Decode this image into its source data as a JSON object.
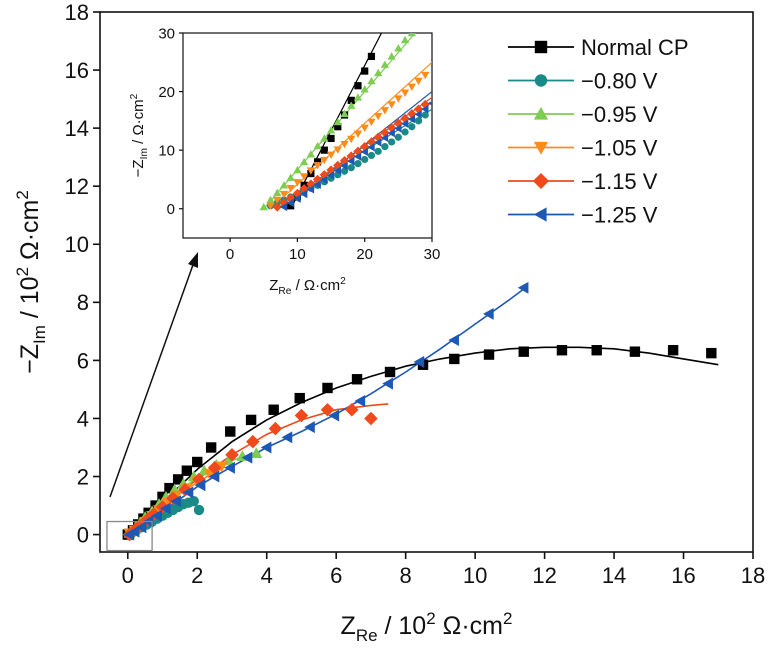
{
  "colors": {
    "normal": "#000000",
    "v080": "#1a8a86",
    "v095": "#7ccd52",
    "v105": "#ff8c1a",
    "v115": "#f04a1c",
    "v125": "#1d58b5"
  },
  "chart_data": [
    {
      "type": "scatter",
      "xlabel": {
        "main": "Z",
        "sub": "Re",
        "rest": " / 10",
        "sup": "2",
        "unit": " Ω·cm",
        "sup2": "2"
      },
      "ylabel": {
        "prefix": "−Z",
        "sub": "Im",
        "rest": " / 10",
        "sup": "2",
        "unit": " Ω·cm",
        "sup2": "2"
      },
      "xlim": [
        -0.8,
        18
      ],
      "ylim": [
        -0.6,
        18
      ],
      "xticks": [
        0,
        2,
        4,
        6,
        8,
        10,
        12,
        14,
        16,
        18
      ],
      "yticks": [
        0,
        2,
        4,
        6,
        8,
        10,
        12,
        14,
        16,
        18
      ],
      "legend_position": "top-right",
      "series": [
        {
          "name": "Normal CP",
          "marker": "square",
          "color_key": "normal",
          "x": [
            0,
            0.15,
            0.3,
            0.45,
            0.6,
            0.8,
            1.0,
            1.2,
            1.45,
            1.7,
            2.0,
            2.4,
            2.95,
            3.55,
            4.2,
            4.95,
            5.75,
            6.6,
            7.55,
            8.5,
            9.4,
            10.4,
            11.4,
            12.5,
            13.5,
            14.6,
            15.7,
            16.8
          ],
          "y": [
            0,
            0.15,
            0.35,
            0.55,
            0.75,
            1.0,
            1.3,
            1.6,
            1.9,
            2.2,
            2.5,
            3.0,
            3.55,
            3.95,
            4.3,
            4.7,
            5.05,
            5.35,
            5.6,
            5.85,
            6.05,
            6.2,
            6.3,
            6.35,
            6.35,
            6.3,
            6.35,
            6.25
          ]
        },
        {
          "name": "−0.80 V",
          "marker": "circle",
          "color_key": "v080",
          "x": [
            0.1,
            0.25,
            0.4,
            0.55,
            0.7,
            0.85,
            1.0,
            1.15,
            1.3,
            1.45,
            1.6,
            1.75,
            1.9,
            2.05
          ],
          "y": [
            0.05,
            0.15,
            0.25,
            0.35,
            0.45,
            0.55,
            0.65,
            0.75,
            0.85,
            0.95,
            1.05,
            1.1,
            1.15,
            0.85
          ]
        },
        {
          "name": "−0.95 V",
          "marker": "triangle-up",
          "color_key": "v095",
          "x": [
            0.05,
            0.2,
            0.35,
            0.5,
            0.7,
            0.9,
            1.1,
            1.35,
            1.6,
            1.9,
            2.2,
            2.55,
            2.9,
            3.3,
            3.7
          ],
          "y": [
            0.05,
            0.2,
            0.4,
            0.6,
            0.8,
            1.05,
            1.3,
            1.55,
            1.75,
            2.0,
            2.2,
            2.4,
            2.55,
            2.7,
            2.8
          ]
        },
        {
          "name": "−1.05 V",
          "marker": "triangle-down",
          "color_key": "v105",
          "x": [
            0.05,
            0.2,
            0.35,
            0.5,
            0.7,
            0.9,
            1.15,
            1.4,
            1.7,
            2.0,
            2.35,
            2.7
          ],
          "y": [
            0.05,
            0.15,
            0.3,
            0.45,
            0.65,
            0.85,
            1.1,
            1.35,
            1.6,
            1.85,
            2.1,
            2.35
          ]
        },
        {
          "name": "−1.15 V",
          "marker": "diamond",
          "color_key": "v115",
          "x": [
            0.05,
            0.2,
            0.35,
            0.55,
            0.75,
            1.0,
            1.3,
            1.65,
            2.05,
            2.5,
            3.0,
            3.6,
            4.25,
            5.0,
            5.75,
            6.45,
            7.0
          ],
          "y": [
            0.0,
            0.15,
            0.3,
            0.5,
            0.7,
            0.95,
            1.25,
            1.55,
            1.9,
            2.3,
            2.75,
            3.2,
            3.65,
            4.1,
            4.3,
            4.3,
            4.0
          ]
        },
        {
          "name": "−1.25 V",
          "marker": "triangle-left",
          "color_key": "v125",
          "x": [
            0.05,
            0.2,
            0.4,
            0.6,
            0.85,
            1.1,
            1.4,
            1.75,
            2.1,
            2.5,
            2.95,
            3.45,
            4.0,
            4.6,
            5.25,
            5.95,
            6.7,
            7.5,
            8.4,
            9.4,
            10.4,
            11.4
          ],
          "y": [
            0.0,
            0.1,
            0.25,
            0.45,
            0.65,
            0.9,
            1.15,
            1.45,
            1.7,
            2.0,
            2.3,
            2.65,
            3.0,
            3.35,
            3.7,
            4.1,
            4.6,
            5.2,
            5.95,
            6.7,
            7.6,
            8.5
          ]
        }
      ],
      "fits": [
        {
          "color_key": "normal",
          "x": [
            0,
            0.5,
            1,
            2,
            3,
            4,
            5,
            6,
            7,
            8,
            9,
            10,
            11,
            12,
            13,
            14,
            15,
            16,
            17
          ],
          "y": [
            0,
            0.55,
            1.1,
            2.25,
            3.2,
            3.95,
            4.55,
            5.05,
            5.45,
            5.8,
            6.05,
            6.25,
            6.4,
            6.45,
            6.45,
            6.4,
            6.25,
            6.05,
            5.85
          ]
        },
        {
          "color_key": "v080",
          "x": [
            0,
            0.5,
            1,
            1.5,
            2
          ],
          "y": [
            0,
            0.4,
            0.75,
            1.05,
            1.25
          ]
        },
        {
          "color_key": "v095",
          "x": [
            0,
            0.5,
            1,
            1.5,
            2,
            2.5,
            3,
            3.5,
            3.8
          ],
          "y": [
            0,
            0.55,
            1.1,
            1.55,
            1.95,
            2.3,
            2.55,
            2.75,
            2.85
          ]
        },
        {
          "color_key": "v105",
          "x": [
            0,
            0.5,
            1,
            1.5,
            2,
            2.5,
            2.8
          ],
          "y": [
            0,
            0.5,
            0.95,
            1.4,
            1.8,
            2.15,
            2.35
          ]
        },
        {
          "color_key": "v115",
          "x": [
            0,
            1,
            2,
            3,
            4,
            5,
            6,
            7,
            7.5
          ],
          "y": [
            0,
            1.0,
            1.9,
            2.75,
            3.45,
            3.95,
            4.3,
            4.45,
            4.5
          ]
        },
        {
          "color_key": "v125",
          "x": [
            0,
            1,
            2,
            3,
            4,
            5,
            6,
            7,
            8,
            9,
            10,
            11,
            11.5
          ],
          "y": [
            0,
            0.8,
            1.65,
            2.35,
            3.0,
            3.55,
            4.15,
            4.85,
            5.6,
            6.4,
            7.25,
            8.1,
            8.55
          ]
        }
      ]
    },
    {
      "type": "scatter",
      "xlabel": {
        "main": "Z",
        "sub": "Re",
        "rest": " / Ω·cm",
        "sup": "2"
      },
      "ylabel": {
        "prefix": "−Z",
        "sub": "Im",
        "rest": " / Ω·cm",
        "sup": "2"
      },
      "xlim": [
        -7,
        30
      ],
      "ylim": [
        -5,
        30
      ],
      "xticks": [
        0,
        10,
        20,
        30
      ],
      "yticks": [
        0,
        10,
        20,
        30
      ],
      "series": [
        {
          "name": "Normal CP",
          "marker": "square",
          "color_key": "normal",
          "x": [
            9,
            10,
            11,
            12,
            13,
            14,
            15,
            16,
            17,
            18,
            19,
            20,
            21
          ],
          "y": [
            0.5,
            2,
            4,
            6,
            8,
            10,
            12,
            14,
            16,
            18.5,
            21,
            23.5,
            26
          ]
        },
        {
          "name": "−0.80 V",
          "marker": "circle",
          "color_key": "v080",
          "x": [
            6,
            7,
            8,
            9,
            10,
            11,
            12,
            13,
            14,
            15,
            16,
            17,
            18,
            19,
            20,
            21,
            22,
            23,
            24,
            25,
            26,
            27,
            28,
            29
          ],
          "y": [
            0.5,
            1.0,
            1.5,
            2.0,
            2.5,
            3.0,
            3.5,
            4.0,
            4.6,
            5.2,
            5.8,
            6.4,
            7.0,
            7.7,
            8.4,
            9.1,
            9.8,
            10.6,
            11.4,
            12.2,
            13.1,
            14.0,
            15.0,
            16.0
          ]
        },
        {
          "name": "−0.95 V",
          "marker": "triangle-up",
          "color_key": "v095",
          "x": [
            5,
            6,
            7,
            8,
            9,
            10,
            11,
            12,
            13,
            14,
            15,
            16,
            17,
            18,
            19,
            20,
            21,
            22,
            23,
            24,
            25,
            26,
            27
          ],
          "y": [
            0.3,
            1.5,
            2.7,
            4,
            5.3,
            6.6,
            8,
            9.3,
            10.7,
            12,
            13.4,
            14.8,
            16.2,
            17.6,
            19,
            20.4,
            21.8,
            23.2,
            24.6,
            26,
            27.4,
            28.8,
            30
          ]
        },
        {
          "name": "−1.05 V",
          "marker": "triangle-down",
          "color_key": "v105",
          "x": [
            6,
            7,
            8,
            9,
            10,
            11,
            12,
            13,
            14,
            15,
            16,
            17,
            18,
            19,
            20,
            21,
            22,
            23,
            24,
            25,
            26,
            27,
            28,
            29
          ],
          "y": [
            0.5,
            1.5,
            2.5,
            3.5,
            4.5,
            5.5,
            6.5,
            7.4,
            8.3,
            9.2,
            10.1,
            11.0,
            11.9,
            12.8,
            13.8,
            14.8,
            15.8,
            16.8,
            17.8,
            18.8,
            19.8,
            20.8,
            21.8,
            22.8
          ]
        },
        {
          "name": "−1.15 V",
          "marker": "diamond",
          "color_key": "v115",
          "x": [
            7,
            8,
            9,
            10,
            11,
            12,
            13,
            14,
            15,
            16,
            17,
            18,
            19,
            20,
            21,
            22,
            23,
            24,
            25,
            26,
            27,
            28,
            29
          ],
          "y": [
            0.3,
            1.0,
            1.8,
            2.6,
            3.4,
            4.2,
            5.0,
            5.8,
            6.6,
            7.4,
            8.2,
            9.0,
            9.8,
            10.6,
            11.4,
            12.2,
            13.0,
            13.8,
            14.6,
            15.4,
            16.2,
            17.0,
            17.8
          ]
        },
        {
          "name": "−1.25 V",
          "marker": "triangle-left",
          "color_key": "v125",
          "x": [
            8,
            9,
            10,
            11,
            12,
            13,
            14,
            15,
            16,
            17,
            18,
            19,
            20,
            21,
            22,
            23,
            24,
            25,
            26,
            27,
            28,
            29,
            30
          ],
          "y": [
            0.3,
            1.0,
            1.7,
            2.5,
            3.3,
            4.1,
            4.9,
            5.7,
            6.5,
            7.3,
            8.1,
            8.9,
            9.7,
            10.5,
            11.3,
            12.1,
            12.9,
            13.7,
            14.5,
            15.3,
            16.1,
            17.0,
            18.0
          ]
        }
      ],
      "fits": [
        {
          "color_key": "normal",
          "x": [
            9,
            22.5
          ],
          "y": [
            0,
            30
          ]
        },
        {
          "color_key": "v095",
          "x": [
            5,
            27.5
          ],
          "y": [
            0,
            30
          ]
        },
        {
          "color_key": "v105",
          "x": [
            6,
            30
          ],
          "y": [
            0,
            25
          ]
        },
        {
          "color_key": "v115",
          "x": [
            7,
            30
          ],
          "y": [
            0,
            19
          ]
        },
        {
          "color_key": "v125",
          "x": [
            8,
            30
          ],
          "y": [
            0,
            20
          ]
        },
        {
          "color_key": "v080",
          "x": [
            6,
            30
          ],
          "y": [
            0,
            17
          ]
        }
      ]
    }
  ]
}
